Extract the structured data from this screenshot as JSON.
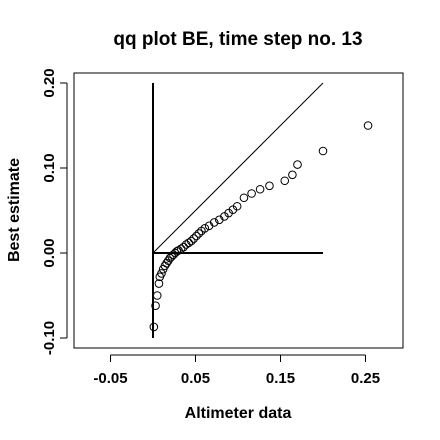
{
  "chart_data": {
    "type": "scatter",
    "title": "qq plot BE, time step no. 13",
    "xlabel": "Altimeter data",
    "ylabel": "Best estimate",
    "xlim": [
      -0.1,
      0.3
    ],
    "ylim": [
      -0.11,
      0.215
    ],
    "x_ticks": [
      -0.05,
      0.05,
      0.15,
      0.25
    ],
    "x_tick_labels": [
      "-0.05",
      "0.05",
      "0.15",
      "0.25"
    ],
    "y_ticks": [
      -0.1,
      0.0,
      0.1,
      0.2
    ],
    "y_tick_labels": [
      "-0.10",
      "0.00",
      "0.10",
      "0.20"
    ],
    "grid": false,
    "reference_lines": [
      {
        "name": "identity",
        "points": [
          [
            0.0,
            0.0
          ],
          [
            0.2,
            0.2
          ]
        ]
      },
      {
        "name": "horizontal-zero",
        "points": [
          [
            0.0,
            0.0
          ],
          [
            0.2,
            0.0
          ]
        ]
      },
      {
        "name": "vertical-zero",
        "points": [
          [
            0.0,
            -0.1
          ],
          [
            0.0,
            0.2
          ]
        ]
      }
    ],
    "points": [
      {
        "x": 0.001,
        "y": -0.087
      },
      {
        "x": 0.003,
        "y": -0.062
      },
      {
        "x": 0.005,
        "y": -0.05
      },
      {
        "x": 0.007,
        "y": -0.036
      },
      {
        "x": 0.008,
        "y": -0.028
      },
      {
        "x": 0.01,
        "y": -0.024
      },
      {
        "x": 0.012,
        "y": -0.019
      },
      {
        "x": 0.014,
        "y": -0.015
      },
      {
        "x": 0.016,
        "y": -0.012
      },
      {
        "x": 0.018,
        "y": -0.009
      },
      {
        "x": 0.02,
        "y": -0.006
      },
      {
        "x": 0.022,
        "y": -0.004
      },
      {
        "x": 0.024,
        "y": -0.002
      },
      {
        "x": 0.026,
        "y": 0.0
      },
      {
        "x": 0.028,
        "y": 0.002
      },
      {
        "x": 0.03,
        "y": 0.003
      },
      {
        "x": 0.033,
        "y": 0.005
      },
      {
        "x": 0.036,
        "y": 0.007
      },
      {
        "x": 0.039,
        "y": 0.01
      },
      {
        "x": 0.042,
        "y": 0.012
      },
      {
        "x": 0.045,
        "y": 0.014
      },
      {
        "x": 0.048,
        "y": 0.017
      },
      {
        "x": 0.051,
        "y": 0.02
      },
      {
        "x": 0.054,
        "y": 0.023
      },
      {
        "x": 0.057,
        "y": 0.026
      },
      {
        "x": 0.061,
        "y": 0.029
      },
      {
        "x": 0.066,
        "y": 0.032
      },
      {
        "x": 0.072,
        "y": 0.036
      },
      {
        "x": 0.078,
        "y": 0.039
      },
      {
        "x": 0.084,
        "y": 0.043
      },
      {
        "x": 0.089,
        "y": 0.047
      },
      {
        "x": 0.094,
        "y": 0.051
      },
      {
        "x": 0.099,
        "y": 0.055
      },
      {
        "x": 0.107,
        "y": 0.065
      },
      {
        "x": 0.116,
        "y": 0.07
      },
      {
        "x": 0.126,
        "y": 0.075
      },
      {
        "x": 0.137,
        "y": 0.079
      },
      {
        "x": 0.155,
        "y": 0.085
      },
      {
        "x": 0.164,
        "y": 0.092
      },
      {
        "x": 0.17,
        "y": 0.104
      },
      {
        "x": 0.2,
        "y": 0.12
      },
      {
        "x": 0.253,
        "y": 0.15
      }
    ]
  }
}
